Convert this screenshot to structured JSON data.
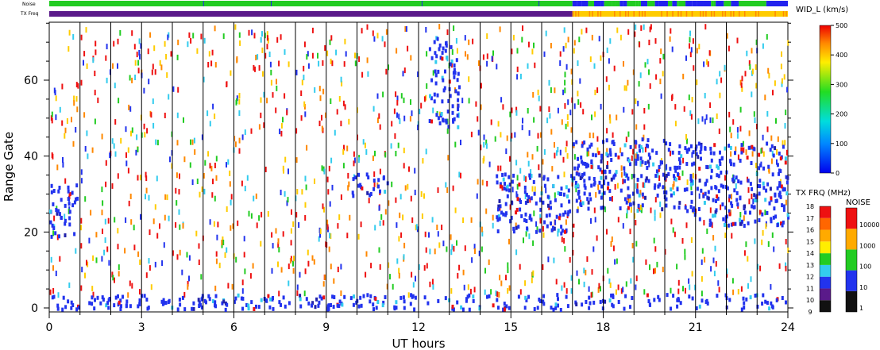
{
  "chart_data": {
    "type": "heatmap",
    "xlabel": "UT hours",
    "ylabel": "Range Gate",
    "xlim": [
      0,
      24
    ],
    "ylim": [
      0,
      75
    ],
    "x_ticks": [
      0,
      3,
      6,
      9,
      12,
      15,
      18,
      21,
      24
    ],
    "y_ticks": [
      0,
      20,
      40,
      60
    ],
    "hour_lines": [
      1,
      2,
      3,
      4,
      5,
      6,
      7,
      8,
      9,
      10,
      11,
      12,
      13,
      14,
      15,
      16,
      17,
      18,
      19,
      20,
      21,
      22,
      23
    ],
    "noise_bar": {
      "label": "Noise",
      "segments": [
        {
          "start": 0,
          "end": 17,
          "level": "100"
        },
        {
          "start": 17,
          "end": 22.4,
          "level": "mixed"
        },
        {
          "start": 22.4,
          "end": 23.3,
          "level": "100"
        },
        {
          "start": 23.3,
          "end": 24,
          "level": "10"
        }
      ]
    },
    "tx_freq_bar": {
      "label": "TX Freq",
      "segments": [
        {
          "start": 0,
          "end": 17,
          "level": "10"
        },
        {
          "start": 17,
          "end": 24,
          "level": "14-15"
        }
      ]
    },
    "echo_regions": [
      {
        "x0": 0,
        "x1": 0.9,
        "y0": 19,
        "y1": 33
      },
      {
        "x0": 9.8,
        "x1": 11.0,
        "y0": 30,
        "y1": 36
      },
      {
        "x0": 12.3,
        "x1": 13.3,
        "y0": 48,
        "y1": 72
      },
      {
        "x0": 14.5,
        "x1": 17.0,
        "y0": 20,
        "y1": 36
      },
      {
        "x0": 17.0,
        "x1": 20.5,
        "y0": 26,
        "y1": 45
      },
      {
        "x0": 20.6,
        "x1": 24.0,
        "y0": 22,
        "y1": 44
      },
      {
        "x0": 0,
        "x1": 24,
        "y0": 0,
        "y1": 4
      }
    ],
    "colorbars": [
      {
        "title": "WID_L (km/s)",
        "ticks": [
          "0",
          "100",
          "200",
          "300",
          "400",
          "500"
        ]
      },
      {
        "title": "TX FRQ (MHz)",
        "ticks": [
          "9",
          "10",
          "11",
          "12",
          "13",
          "14",
          "15",
          "16",
          "17",
          "18"
        ]
      },
      {
        "title": "NOISE",
        "ticks": [
          "1",
          "10",
          "100",
          "1000",
          "10000"
        ]
      }
    ]
  },
  "colors": {
    "noise_100": "#22cc22",
    "noise_10": "#2222ee",
    "tx_10": "#5a1a8a",
    "tx_14": "#ffcc00",
    "tx_15": "#ff8800"
  }
}
